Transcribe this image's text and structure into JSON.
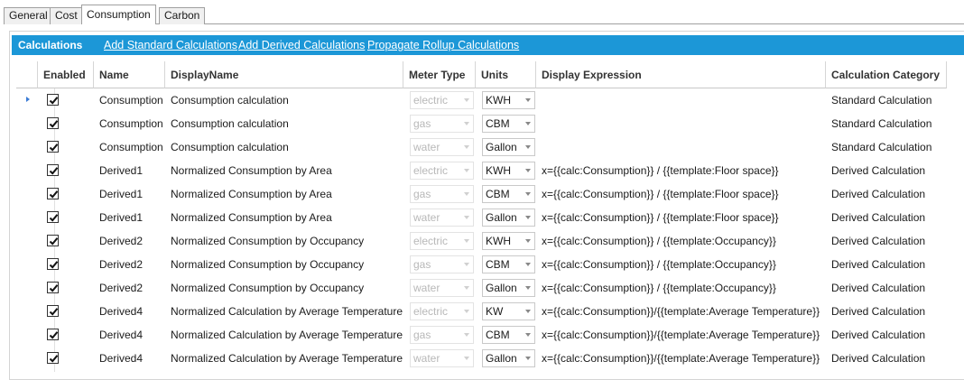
{
  "tabs": [
    "General",
    "Cost",
    "Consumption",
    "Carbon"
  ],
  "active_tab": "Consumption",
  "panel": {
    "title": "Calculations",
    "links": [
      "Add Standard Calculations",
      "Add Derived Calculations",
      "Propagate Rollup Calculations"
    ],
    "header_color": "#1c97d7"
  },
  "columns": [
    "Enabled",
    "Name",
    "DisplayName",
    "Meter Type",
    "Units",
    "Display Expression",
    "Calculation Category"
  ],
  "rows": [
    {
      "enabled": true,
      "name": "Consumption",
      "display": "Consumption calculation",
      "meter": "electric",
      "units": "KWH",
      "expr": "",
      "category": "Standard Calculation"
    },
    {
      "enabled": true,
      "name": "Consumption",
      "display": "Consumption calculation",
      "meter": "gas",
      "units": "CBM",
      "expr": "",
      "category": "Standard Calculation"
    },
    {
      "enabled": true,
      "name": "Consumption",
      "display": "Consumption calculation",
      "meter": "water",
      "units": "Gallon",
      "expr": "",
      "category": "Standard Calculation"
    },
    {
      "enabled": true,
      "name": "Derived1",
      "display": "Normalized Consumption by Area",
      "meter": "electric",
      "units": "KWH",
      "expr": "x={{calc:Consumption}} / {{template:Floor space}}",
      "category": "Derived Calculation"
    },
    {
      "enabled": true,
      "name": "Derived1",
      "display": "Normalized Consumption by Area",
      "meter": "gas",
      "units": "CBM",
      "expr": "x={{calc:Consumption}} / {{template:Floor space}}",
      "category": "Derived Calculation"
    },
    {
      "enabled": true,
      "name": "Derived1",
      "display": "Normalized Consumption by Area",
      "meter": "water",
      "units": "Gallon",
      "expr": "x={{calc:Consumption}} / {{template:Floor space}}",
      "category": "Derived Calculation"
    },
    {
      "enabled": true,
      "name": "Derived2",
      "display": "Normalized Consumption by Occupancy",
      "meter": "electric",
      "units": "KWH",
      "expr": "x={{calc:Consumption}} / {{template:Occupancy}}",
      "category": "Derived Calculation"
    },
    {
      "enabled": true,
      "name": "Derived2",
      "display": "Normalized Consumption by Occupancy",
      "meter": "gas",
      "units": "CBM",
      "expr": "x={{calc:Consumption}} / {{template:Occupancy}}",
      "category": "Derived Calculation"
    },
    {
      "enabled": true,
      "name": "Derived2",
      "display": "Normalized Consumption by Occupancy",
      "meter": "water",
      "units": "Gallon",
      "expr": "x={{calc:Consumption}} / {{template:Occupancy}}",
      "category": "Derived Calculation"
    },
    {
      "enabled": true,
      "name": "Derived4",
      "display": "Normalized Calculation by Average Temperature",
      "meter": "electric",
      "units": "KW",
      "expr": "x={{calc:Consumption}}/{{template:Average Temperature}}",
      "category": "Derived Calculation"
    },
    {
      "enabled": true,
      "name": "Derived4",
      "display": "Normalized Calculation by Average Temperature",
      "meter": "gas",
      "units": "CBM",
      "expr": "x={{calc:Consumption}}/{{template:Average Temperature}}",
      "category": "Derived Calculation"
    },
    {
      "enabled": true,
      "name": "Derived4",
      "display": "Normalized Calculation by Average Temperature",
      "meter": "water",
      "units": "Gallon",
      "expr": "x={{calc:Consumption}}/{{template:Average Temperature}}",
      "category": "Derived Calculation"
    }
  ]
}
